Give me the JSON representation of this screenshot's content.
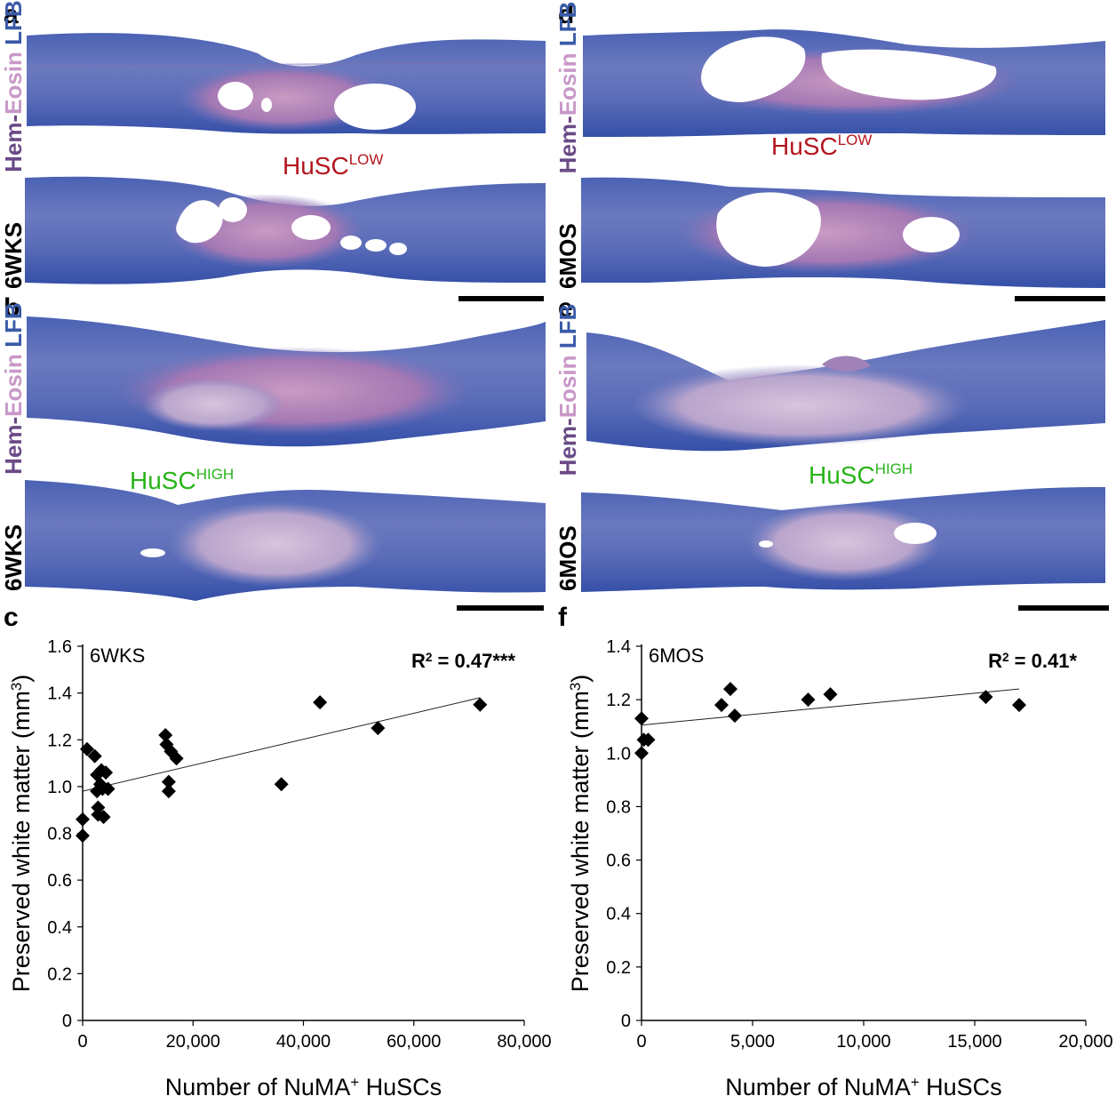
{
  "panels": {
    "a": {
      "letter": "a",
      "group": "HuSC",
      "group_sup": "LOW",
      "timepoint": "6WKS"
    },
    "b": {
      "letter": "b",
      "group": "HuSC",
      "group_sup": "HIGH",
      "timepoint": "6WKS"
    },
    "d": {
      "letter": "d",
      "group": "HuSC",
      "group_sup": "LOW",
      "timepoint": "6MOS"
    },
    "e": {
      "letter": "e",
      "group": "HuSC",
      "group_sup": "HIGH",
      "timepoint": "6MOS"
    }
  },
  "stain": {
    "hem": "Hem-",
    "eosin": "Eosin",
    "lfb": " LFB"
  },
  "colors": {
    "low": "#b3161e",
    "high": "#27b419",
    "lfb_blue": "#3a5aa8",
    "eosin_pink": "#c898c8"
  },
  "chart_data": [
    {
      "panel": "c",
      "type": "scatter",
      "inset": "6WKS",
      "annotation": {
        "base": "R",
        "sup": "2",
        "rest": " = 0.47***"
      },
      "xlabel": {
        "base": "Number of NuMA",
        "sup": "+",
        "rest": " HuSCs"
      },
      "ylabel": {
        "base": "Preserved white matter (mm",
        "sup": "3",
        "rest": ")"
      },
      "xlim": [
        0,
        80000
      ],
      "ylim": [
        0,
        1.6
      ],
      "xticks": [
        0,
        20000,
        40000,
        60000,
        80000
      ],
      "xtick_labels": [
        "0",
        "20,000",
        "40,000",
        "60,000",
        "80,000"
      ],
      "yticks": [
        0,
        0.2,
        0.4,
        0.6,
        0.8,
        1.0,
        1.2,
        1.4,
        1.6
      ],
      "ytick_labels": [
        "0",
        "0.2",
        "0.4",
        "0.6",
        "0.8",
        "1.0",
        "1.2",
        "1.4",
        "1.6"
      ],
      "points": [
        [
          0,
          0.79
        ],
        [
          0,
          0.86
        ],
        [
          800,
          1.16
        ],
        [
          2200,
          1.13
        ],
        [
          2600,
          1.05
        ],
        [
          2600,
          0.98
        ],
        [
          2800,
          0.91
        ],
        [
          2800,
          0.88
        ],
        [
          3200,
          1.01
        ],
        [
          3400,
          1.07
        ],
        [
          3600,
          0.99
        ],
        [
          3800,
          0.87
        ],
        [
          4200,
          1.06
        ],
        [
          4600,
          0.99
        ],
        [
          15000,
          1.22
        ],
        [
          15200,
          1.18
        ],
        [
          16000,
          1.15
        ],
        [
          15600,
          1.02
        ],
        [
          15600,
          0.98
        ],
        [
          17000,
          1.12
        ],
        [
          36000,
          1.01
        ],
        [
          43000,
          1.36
        ],
        [
          53500,
          1.25
        ],
        [
          72000,
          1.35
        ]
      ],
      "trendline": [
        [
          0,
          0.98
        ],
        [
          72000,
          1.38
        ]
      ]
    },
    {
      "panel": "f",
      "type": "scatter",
      "inset": "6MOS",
      "annotation": {
        "base": "R",
        "sup": "2",
        "rest": " = 0.41*"
      },
      "xlabel": {
        "base": "Number of NuMA",
        "sup": "+",
        "rest": " HuSCs"
      },
      "ylabel": {
        "base": "Preserved white matter (mm",
        "sup": "3",
        "rest": ")"
      },
      "xlim": [
        0,
        20000
      ],
      "ylim": [
        0,
        1.4
      ],
      "xticks": [
        0,
        5000,
        10000,
        15000,
        20000
      ],
      "xtick_labels": [
        "0",
        "5,000",
        "10,000",
        "15,000",
        "20,000"
      ],
      "yticks": [
        0,
        0.2,
        0.4,
        0.6,
        0.8,
        1.0,
        1.2,
        1.4
      ],
      "ytick_labels": [
        "0",
        "0.2",
        "0.4",
        "0.6",
        "0.8",
        "1.0",
        "1.2",
        "1.4"
      ],
      "points": [
        [
          0,
          1.13
        ],
        [
          100,
          1.05
        ],
        [
          0,
          1.0
        ],
        [
          300,
          1.05
        ],
        [
          3600,
          1.18
        ],
        [
          4000,
          1.24
        ],
        [
          4200,
          1.14
        ],
        [
          7500,
          1.2
        ],
        [
          8500,
          1.22
        ],
        [
          15500,
          1.21
        ],
        [
          17000,
          1.18
        ]
      ],
      "trendline": [
        [
          0,
          1.105
        ],
        [
          17000,
          1.24
        ]
      ]
    }
  ]
}
